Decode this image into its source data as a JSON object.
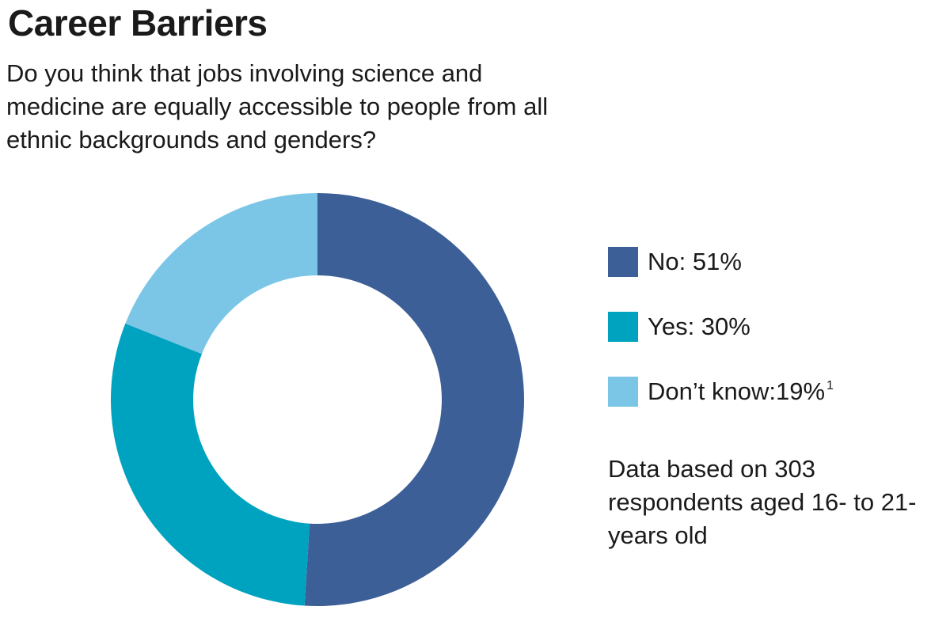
{
  "chart_data": {
    "type": "pie",
    "donut": true,
    "title": "Career Barriers",
    "subtitle": "Do you think that jobs involving science and medicine are equally accessible to people from all ethnic backgrounds and genders?",
    "slices": [
      {
        "label": "No",
        "value": 51,
        "display": "No: 51%",
        "color": "#3d5f97",
        "footnote": ""
      },
      {
        "label": "Yes",
        "value": 30,
        "display": "Yes: 30%",
        "color": "#00a3bf",
        "footnote": ""
      },
      {
        "label": "Don't know",
        "value": 19,
        "display": "Don’t know:19%",
        "color": "#7bc6e7",
        "footnote": "1"
      }
    ],
    "legend_position": "right",
    "note": "Data based on 303 respondents aged 16- to 21-years old"
  }
}
